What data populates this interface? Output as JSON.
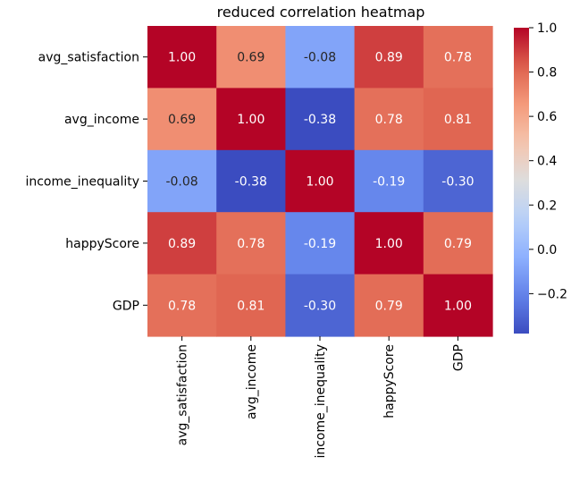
{
  "chart_data": {
    "type": "heatmap",
    "title": "reduced correlation heatmap",
    "xlabel": "",
    "ylabel": "",
    "x_labels": [
      "avg_satisfaction",
      "avg_income",
      "income_inequality",
      "happyScore",
      "GDP"
    ],
    "y_labels": [
      "avg_satisfaction",
      "avg_income",
      "income_inequality",
      "happyScore",
      "GDP"
    ],
    "cell_labels": [
      [
        "1.00",
        "0.69",
        "-0.08",
        "0.89",
        "0.78"
      ],
      [
        "0.69",
        "1.00",
        "-0.38",
        "0.78",
        "0.81"
      ],
      [
        "-0.08",
        "-0.38",
        "1.00",
        "-0.19",
        "-0.30"
      ],
      [
        "0.89",
        "0.78",
        "-0.19",
        "1.00",
        "0.79"
      ],
      [
        "0.78",
        "0.81",
        "-0.30",
        "0.79",
        "1.00"
      ]
    ],
    "values": [
      [
        1.0,
        0.69,
        -0.08,
        0.89,
        0.78
      ],
      [
        0.69,
        1.0,
        -0.38,
        0.78,
        0.81
      ],
      [
        -0.08,
        -0.38,
        1.0,
        -0.19,
        -0.3
      ],
      [
        0.89,
        0.78,
        -0.19,
        1.0,
        0.79
      ],
      [
        0.78,
        0.81,
        -0.3,
        0.79,
        1.0
      ]
    ],
    "colormap": "coolwarm",
    "colorbar": {
      "min": -0.38,
      "max": 1.0,
      "ticks": [
        -0.2,
        0.0,
        0.2,
        0.4,
        0.6,
        0.8,
        1.0
      ],
      "tick_labels": [
        "−0.2",
        "0.0",
        "0.2",
        "0.4",
        "0.6",
        "0.8",
        "1.0"
      ]
    },
    "grid": false,
    "legend": "colorbar-right"
  }
}
